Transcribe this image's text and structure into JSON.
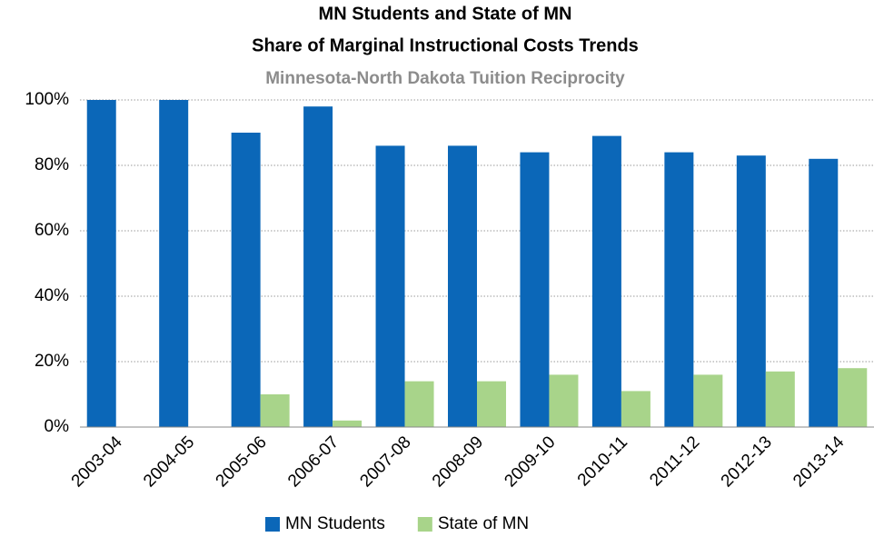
{
  "chart_data": {
    "type": "bar",
    "title": [
      "MN Students and State of MN",
      "Share of Marginal Instructional Costs Trends"
    ],
    "subtitle": "Minnesota-North Dakota Tuition Reciprocity",
    "categories": [
      "2003-04",
      "2004-05",
      "2005-06",
      "2006-07",
      "2007-08",
      "2008-09",
      "2009-10",
      "2010-11",
      "2011-12",
      "2012-13",
      "2013-14"
    ],
    "series": [
      {
        "name": "MN Students",
        "color": "#0b67b8",
        "values": [
          100,
          100,
          90,
          98,
          86,
          86,
          84,
          89,
          84,
          83,
          82
        ]
      },
      {
        "name": "State of MN",
        "color": "#a8d48a",
        "values": [
          0,
          0,
          10,
          2,
          14,
          14,
          16,
          11,
          16,
          17,
          18
        ]
      }
    ],
    "ylim": [
      0,
      100
    ],
    "yticks": [
      {
        "value": 0,
        "label": "0%"
      },
      {
        "value": 20,
        "label": "20%"
      },
      {
        "value": 40,
        "label": "40%"
      },
      {
        "value": 60,
        "label": "60%"
      },
      {
        "value": 80,
        "label": "80%"
      },
      {
        "value": 100,
        "label": "100%"
      }
    ],
    "grid": true,
    "legend": "bottom"
  }
}
